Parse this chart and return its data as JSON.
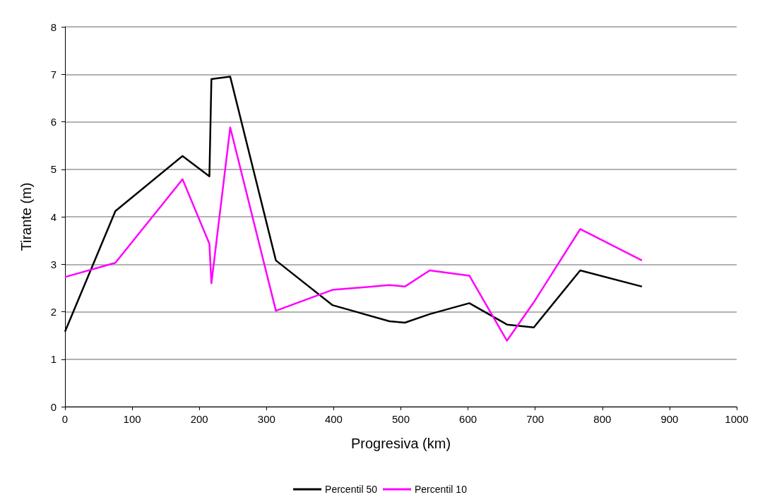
{
  "chart_data": {
    "type": "line",
    "xlabel": "Progresiva (km)",
    "ylabel": "Tirante (m)",
    "xlim": [
      0,
      1000
    ],
    "xticks": [
      0,
      100,
      200,
      300,
      400,
      500,
      600,
      700,
      800,
      900,
      1000
    ],
    "ylim": [
      0,
      8
    ],
    "yticks": [
      0,
      1,
      2,
      3,
      4,
      5,
      6,
      7,
      8
    ],
    "grid": "y",
    "legend": "bottom",
    "marker": "none",
    "line_style": "solid",
    "series": [
      {
        "name": "Percentil 50",
        "color": "#000000",
        "x": [
          0,
          75,
          175,
          215,
          218,
          246,
          314,
          398,
          483,
          506,
          543,
          602,
          658,
          698,
          767,
          859
        ],
        "values": [
          1.58,
          4.12,
          5.28,
          4.85,
          6.9,
          6.95,
          3.08,
          2.14,
          1.8,
          1.77,
          1.95,
          2.18,
          1.73,
          1.67,
          2.87,
          2.53
        ]
      },
      {
        "name": "Percentil 10",
        "color": "#ff00ff",
        "x": [
          0,
          75,
          175,
          215,
          218,
          246,
          314,
          398,
          483,
          506,
          543,
          602,
          658,
          698,
          767,
          859
        ],
        "values": [
          2.73,
          3.03,
          4.79,
          3.43,
          2.6,
          5.88,
          2.02,
          2.46,
          2.56,
          2.53,
          2.87,
          2.76,
          1.39,
          2.2,
          3.74,
          3.08
        ]
      }
    ]
  }
}
